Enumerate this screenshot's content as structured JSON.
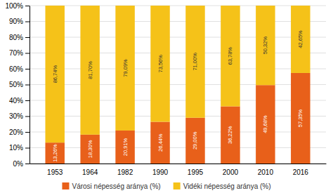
{
  "chart_data": {
    "type": "bar",
    "stacked": true,
    "categories": [
      "1953",
      "1964",
      "1982",
      "1990",
      "1995",
      "2000",
      "2010",
      "2016"
    ],
    "series": [
      {
        "name": "Városi népesség aránya (%)",
        "color": "#E8601A",
        "values": [
          13.26,
          18.3,
          20.91,
          26.44,
          29.0,
          36.22,
          49.68,
          57.35
        ],
        "value_labels": [
          "13,26%",
          "18,30%",
          "20,91%",
          "26,44%",
          "29,00%",
          "36,22%",
          "49,68%",
          "57,35%"
        ]
      },
      {
        "name": "Vidéki népesség aránya (%)",
        "color": "#F5C219",
        "values": [
          86.74,
          81.7,
          79.09,
          73.56,
          71.0,
          63.78,
          50.32,
          42.65
        ],
        "value_labels": [
          "86,74%",
          "81,70%",
          "79,09%",
          "73,56%",
          "71,00%",
          "63,78%",
          "50,32%",
          "42,65%"
        ]
      }
    ],
    "data_labels": true,
    "ylim": [
      0,
      100
    ],
    "yticks": [
      {
        "value": 0,
        "label": "0%"
      },
      {
        "value": 10,
        "label": "10%"
      },
      {
        "value": 20,
        "label": "20%"
      },
      {
        "value": 30,
        "label": "30%"
      },
      {
        "value": 40,
        "label": "40%"
      },
      {
        "value": 50,
        "label": "50%"
      },
      {
        "value": 60,
        "label": "60%"
      },
      {
        "value": 70,
        "label": "70%"
      },
      {
        "value": 80,
        "label": "80%"
      },
      {
        "value": 90,
        "label": "90%"
      },
      {
        "value": 100,
        "label": "100%"
      }
    ],
    "grid": true,
    "legend": "bottom"
  }
}
